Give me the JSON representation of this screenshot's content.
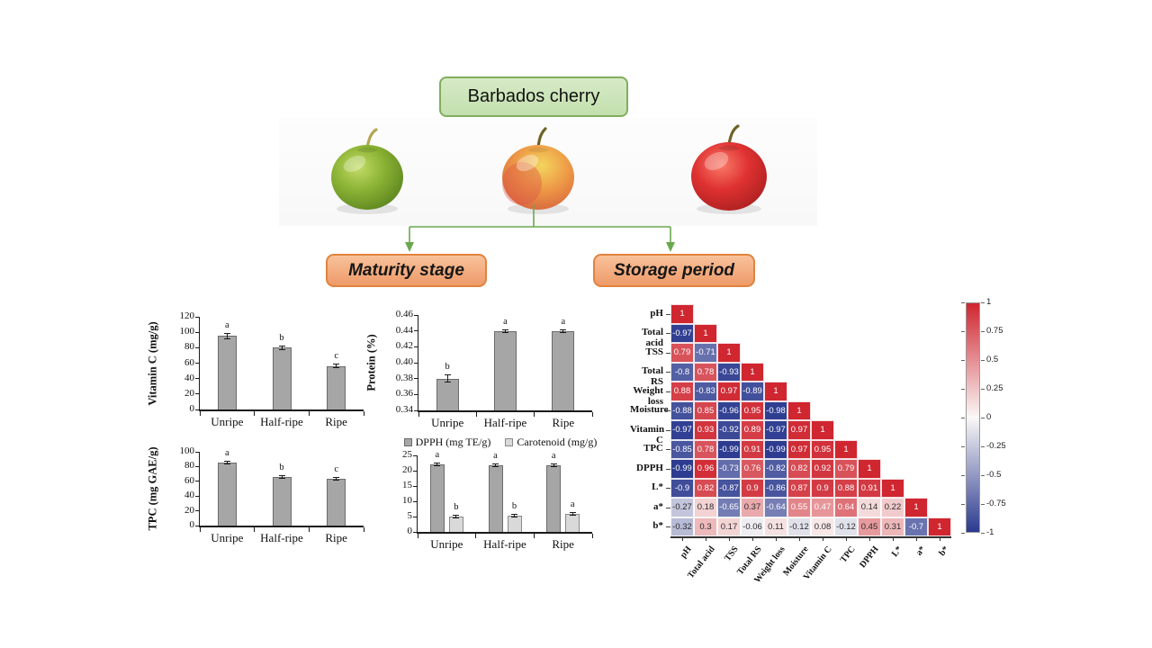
{
  "title_box": {
    "label": "Barbados cherry"
  },
  "branches": {
    "left": "Maturity stage",
    "right": "Storage period"
  },
  "cherries": [
    {
      "name": "unripe-cherry",
      "main_color": "#7ca83a"
    },
    {
      "name": "half-ripe-cherry",
      "main_color": "#ef9a4a"
    },
    {
      "name": "ripe-cherry",
      "main_color": "#d42727"
    }
  ],
  "colors": {
    "title_bg_top": "#d6eac6",
    "title_bg_bot": "#c3dfae",
    "title_border": "#7fae5e",
    "branch_bg_top": "#f8c29b",
    "branch_bg_bot": "#ee9a68",
    "branch_border": "#e2833f",
    "connector": "#6aa84f",
    "axis": "#1a1a1a",
    "bar_gray": "#a6a6a6",
    "bar_light_gray": "#d9d9d9"
  },
  "chart_data": [
    {
      "id": "vitamin-c",
      "type": "bar",
      "ylabel": "Vitamin C (mg/g)",
      "categories": [
        "Unripe",
        "Half-ripe",
        "Ripe"
      ],
      "series": [
        {
          "name": "Vitamin C",
          "values": [
            95,
            80,
            56
          ],
          "errors": [
            4,
            3,
            3
          ],
          "letters": [
            "a",
            "b",
            "c"
          ],
          "color": "#a6a6a6",
          "border": "#6b6b6b"
        }
      ],
      "ylim": [
        0,
        120
      ],
      "ystep": 20,
      "ytick_labels": [
        "0",
        "20",
        "40",
        "60",
        "80",
        "100",
        "120"
      ]
    },
    {
      "id": "protein",
      "type": "bar",
      "ylabel": "Protein (%)",
      "categories": [
        "Unripe",
        "Half-ripe",
        "Ripe"
      ],
      "series": [
        {
          "name": "Protein",
          "values": [
            0.38,
            0.44,
            0.44
          ],
          "errors": [
            0.005,
            0.001,
            0.001
          ],
          "letters": [
            "b",
            "a",
            "a"
          ],
          "color": "#a6a6a6",
          "border": "#6b6b6b"
        }
      ],
      "ylim": [
        0.34,
        0.46
      ],
      "ystep": 0.02,
      "ytick_labels": [
        "0.34",
        "0.36",
        "0.38",
        "0.40",
        "0.42",
        "0.44",
        "0.46"
      ]
    },
    {
      "id": "tpc",
      "type": "bar",
      "ylabel": "TPC (mg GAE/g)",
      "categories": [
        "Unripe",
        "Half-ripe",
        "Ripe"
      ],
      "series": [
        {
          "name": "TPC",
          "values": [
            85,
            66,
            64
          ],
          "errors": [
            2,
            1.5,
            1.5
          ],
          "letters": [
            "a",
            "b",
            "c"
          ],
          "color": "#a6a6a6",
          "border": "#6b6b6b"
        }
      ],
      "ylim": [
        0,
        100
      ],
      "ystep": 20,
      "ytick_labels": [
        "0",
        "20",
        "40",
        "60",
        "80",
        "100"
      ]
    },
    {
      "id": "dpph-carotenoid",
      "type": "bar",
      "ylabel": "",
      "legend": true,
      "categories": [
        "Unripe",
        "Half-ripe",
        "Ripe"
      ],
      "series": [
        {
          "name": "DPPH (mg TE/g)",
          "values": [
            22,
            21.8,
            21.7
          ],
          "errors": [
            0.4,
            0.4,
            0.4
          ],
          "letters": [
            "a",
            "a",
            "a"
          ],
          "color": "#a6a6a6",
          "border": "#6b6b6b"
        },
        {
          "name": "Carotenoid (mg/g)",
          "values": [
            4.9,
            5.2,
            6
          ],
          "errors": [
            0.3,
            0.3,
            0.4
          ],
          "letters": [
            "b",
            "b",
            "a"
          ],
          "color": "#d9d9d9",
          "border": "#8a8a8a"
        }
      ],
      "ylim": [
        0,
        25
      ],
      "ystep": 5,
      "ytick_labels": [
        "0",
        "5",
        "10",
        "15",
        "20",
        "25"
      ]
    },
    {
      "id": "correlation",
      "type": "heatmap",
      "labels": [
        "pH",
        "Total acid",
        "TSS",
        "Total RS",
        "Weight loss",
        "Moisture",
        "Vitamin C",
        "TPC",
        "DPPH",
        "L*",
        "a*",
        "b*"
      ],
      "matrix": [
        [
          1
        ],
        [
          -0.97,
          1
        ],
        [
          0.79,
          -0.71,
          1
        ],
        [
          -0.8,
          0.78,
          -0.93,
          1
        ],
        [
          0.88,
          -0.83,
          0.97,
          -0.89,
          1
        ],
        [
          -0.88,
          0.85,
          -0.96,
          0.95,
          -0.98,
          1
        ],
        [
          -0.97,
          0.93,
          -0.92,
          0.89,
          -0.97,
          0.97,
          1
        ],
        [
          -0.85,
          0.78,
          -0.99,
          0.91,
          -0.99,
          0.97,
          0.95,
          1
        ],
        [
          -0.99,
          0.96,
          -0.73,
          0.76,
          -0.82,
          0.82,
          0.92,
          0.79,
          1
        ],
        [
          -0.9,
          0.82,
          -0.87,
          0.9,
          -0.86,
          0.87,
          0.9,
          0.88,
          0.91,
          1
        ],
        [
          -0.27,
          0.18,
          -0.65,
          0.37,
          -0.64,
          0.55,
          0.47,
          0.64,
          0.14,
          0.22,
          1
        ],
        [
          -0.32,
          0.3,
          0.17,
          -0.06,
          0.11,
          -0.12,
          0.08,
          -0.12,
          0.45,
          0.31,
          -0.7,
          1
        ]
      ],
      "colorbar_ticks": [
        "1",
        "0.75",
        "0.5",
        "0.25",
        "0",
        "-0.25",
        "-0.5",
        "-0.75",
        "-1"
      ],
      "colorbar_values": [
        1,
        0.75,
        0.5,
        0.25,
        0,
        -0.25,
        -0.5,
        -0.75,
        -1
      ],
      "cmap": {
        "pos": "#cf2630",
        "mid": "#faf8f7",
        "neg": "#2b3a8f"
      }
    }
  ]
}
